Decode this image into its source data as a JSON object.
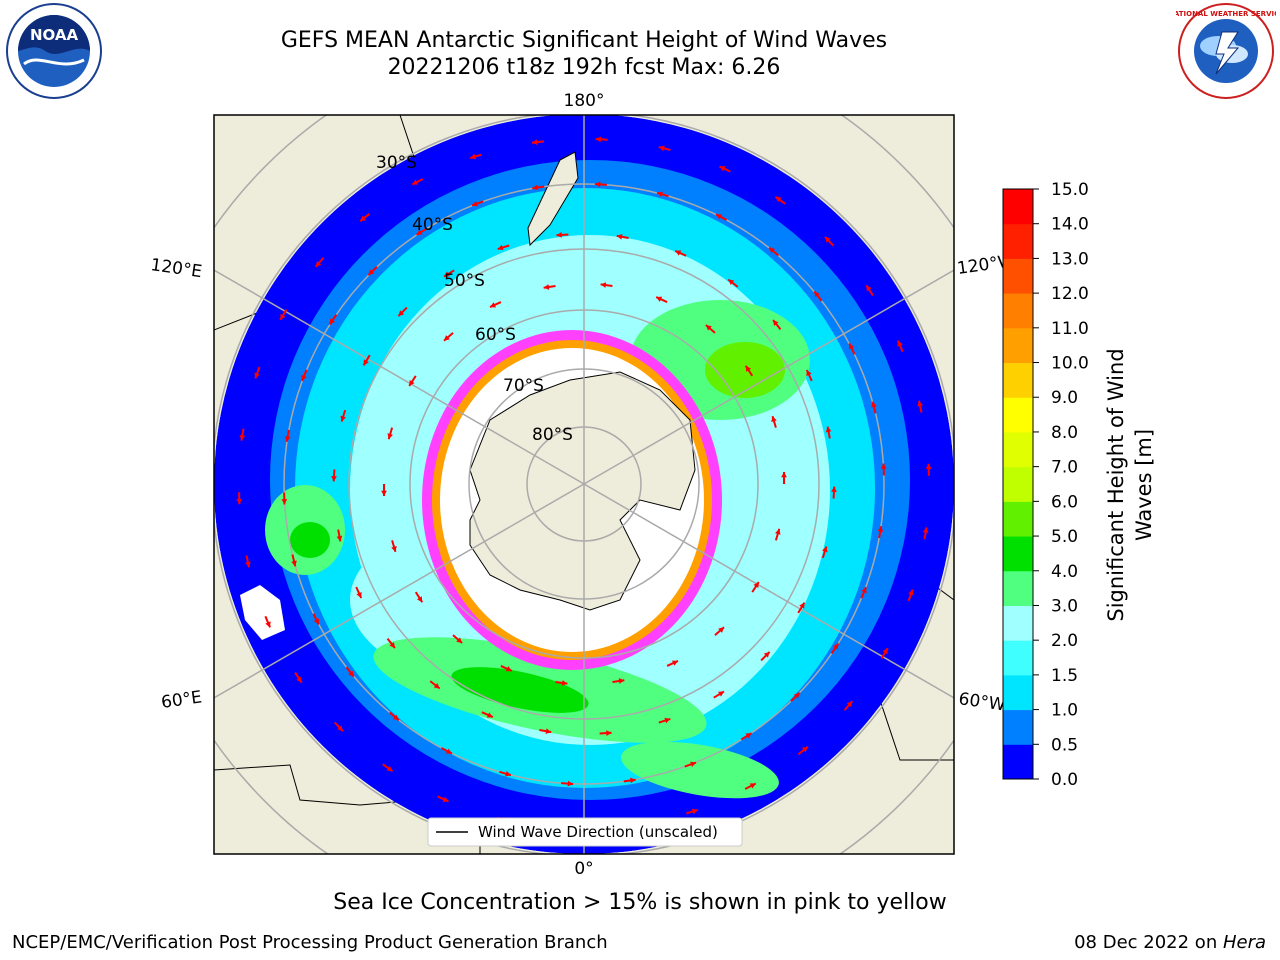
{
  "title": {
    "line1": "GEFS MEAN Antarctic Significant Height of Wind Waves",
    "line2": "20221206 t18z 192h fcst   Max: 6.26"
  },
  "logos": {
    "left_text": "NOAA",
    "right_text": "NATIONAL WEATHER SERVICE"
  },
  "map": {
    "lon_labels": {
      "top": "180°",
      "bottom": "0°",
      "upper_left": "120°E",
      "lower_left": "60°E",
      "upper_right": "120°W",
      "lower_right": "60°W"
    },
    "lat_labels": [
      "30°S",
      "40°S",
      "50°S",
      "60°S",
      "70°S",
      "80°S"
    ],
    "legend": "Wind Wave Direction (unscaled)",
    "colors": {
      "ocean_low": "#0000ff",
      "ocean_mid": "#00e5ff",
      "ocean_high": "#00e000",
      "land": "#eeecda",
      "ice_edge": "#ff40ff",
      "arrow": "#ff0000"
    }
  },
  "colorbar": {
    "title_line1": "Significant Height of Wind",
    "title_line2": "Waves [m]",
    "ticks": [
      "0.0",
      "0.5",
      "1.0",
      "1.5",
      "2.0",
      "3.0",
      "4.0",
      "5.0",
      "6.0",
      "7.0",
      "8.0",
      "9.0",
      "10.0",
      "11.0",
      "12.0",
      "13.0",
      "14.0",
      "15.0"
    ],
    "colors": [
      "#0000ff",
      "#0080ff",
      "#00e5ff",
      "#40ffff",
      "#a0ffff",
      "#50ff80",
      "#00e000",
      "#60f000",
      "#c0ff00",
      "#e0ff00",
      "#ffff00",
      "#ffd000",
      "#ffa000",
      "#ff8000",
      "#ff5000",
      "#ff2000",
      "#ff0000"
    ]
  },
  "ice_note": "Sea Ice Concentration > 15% is shown in pink to yellow",
  "footer": {
    "left": "NCEP/EMC/Verification Post Processing Product Generation Branch",
    "right_prefix": "08 Dec 2022 on ",
    "right_host": "Hera"
  }
}
